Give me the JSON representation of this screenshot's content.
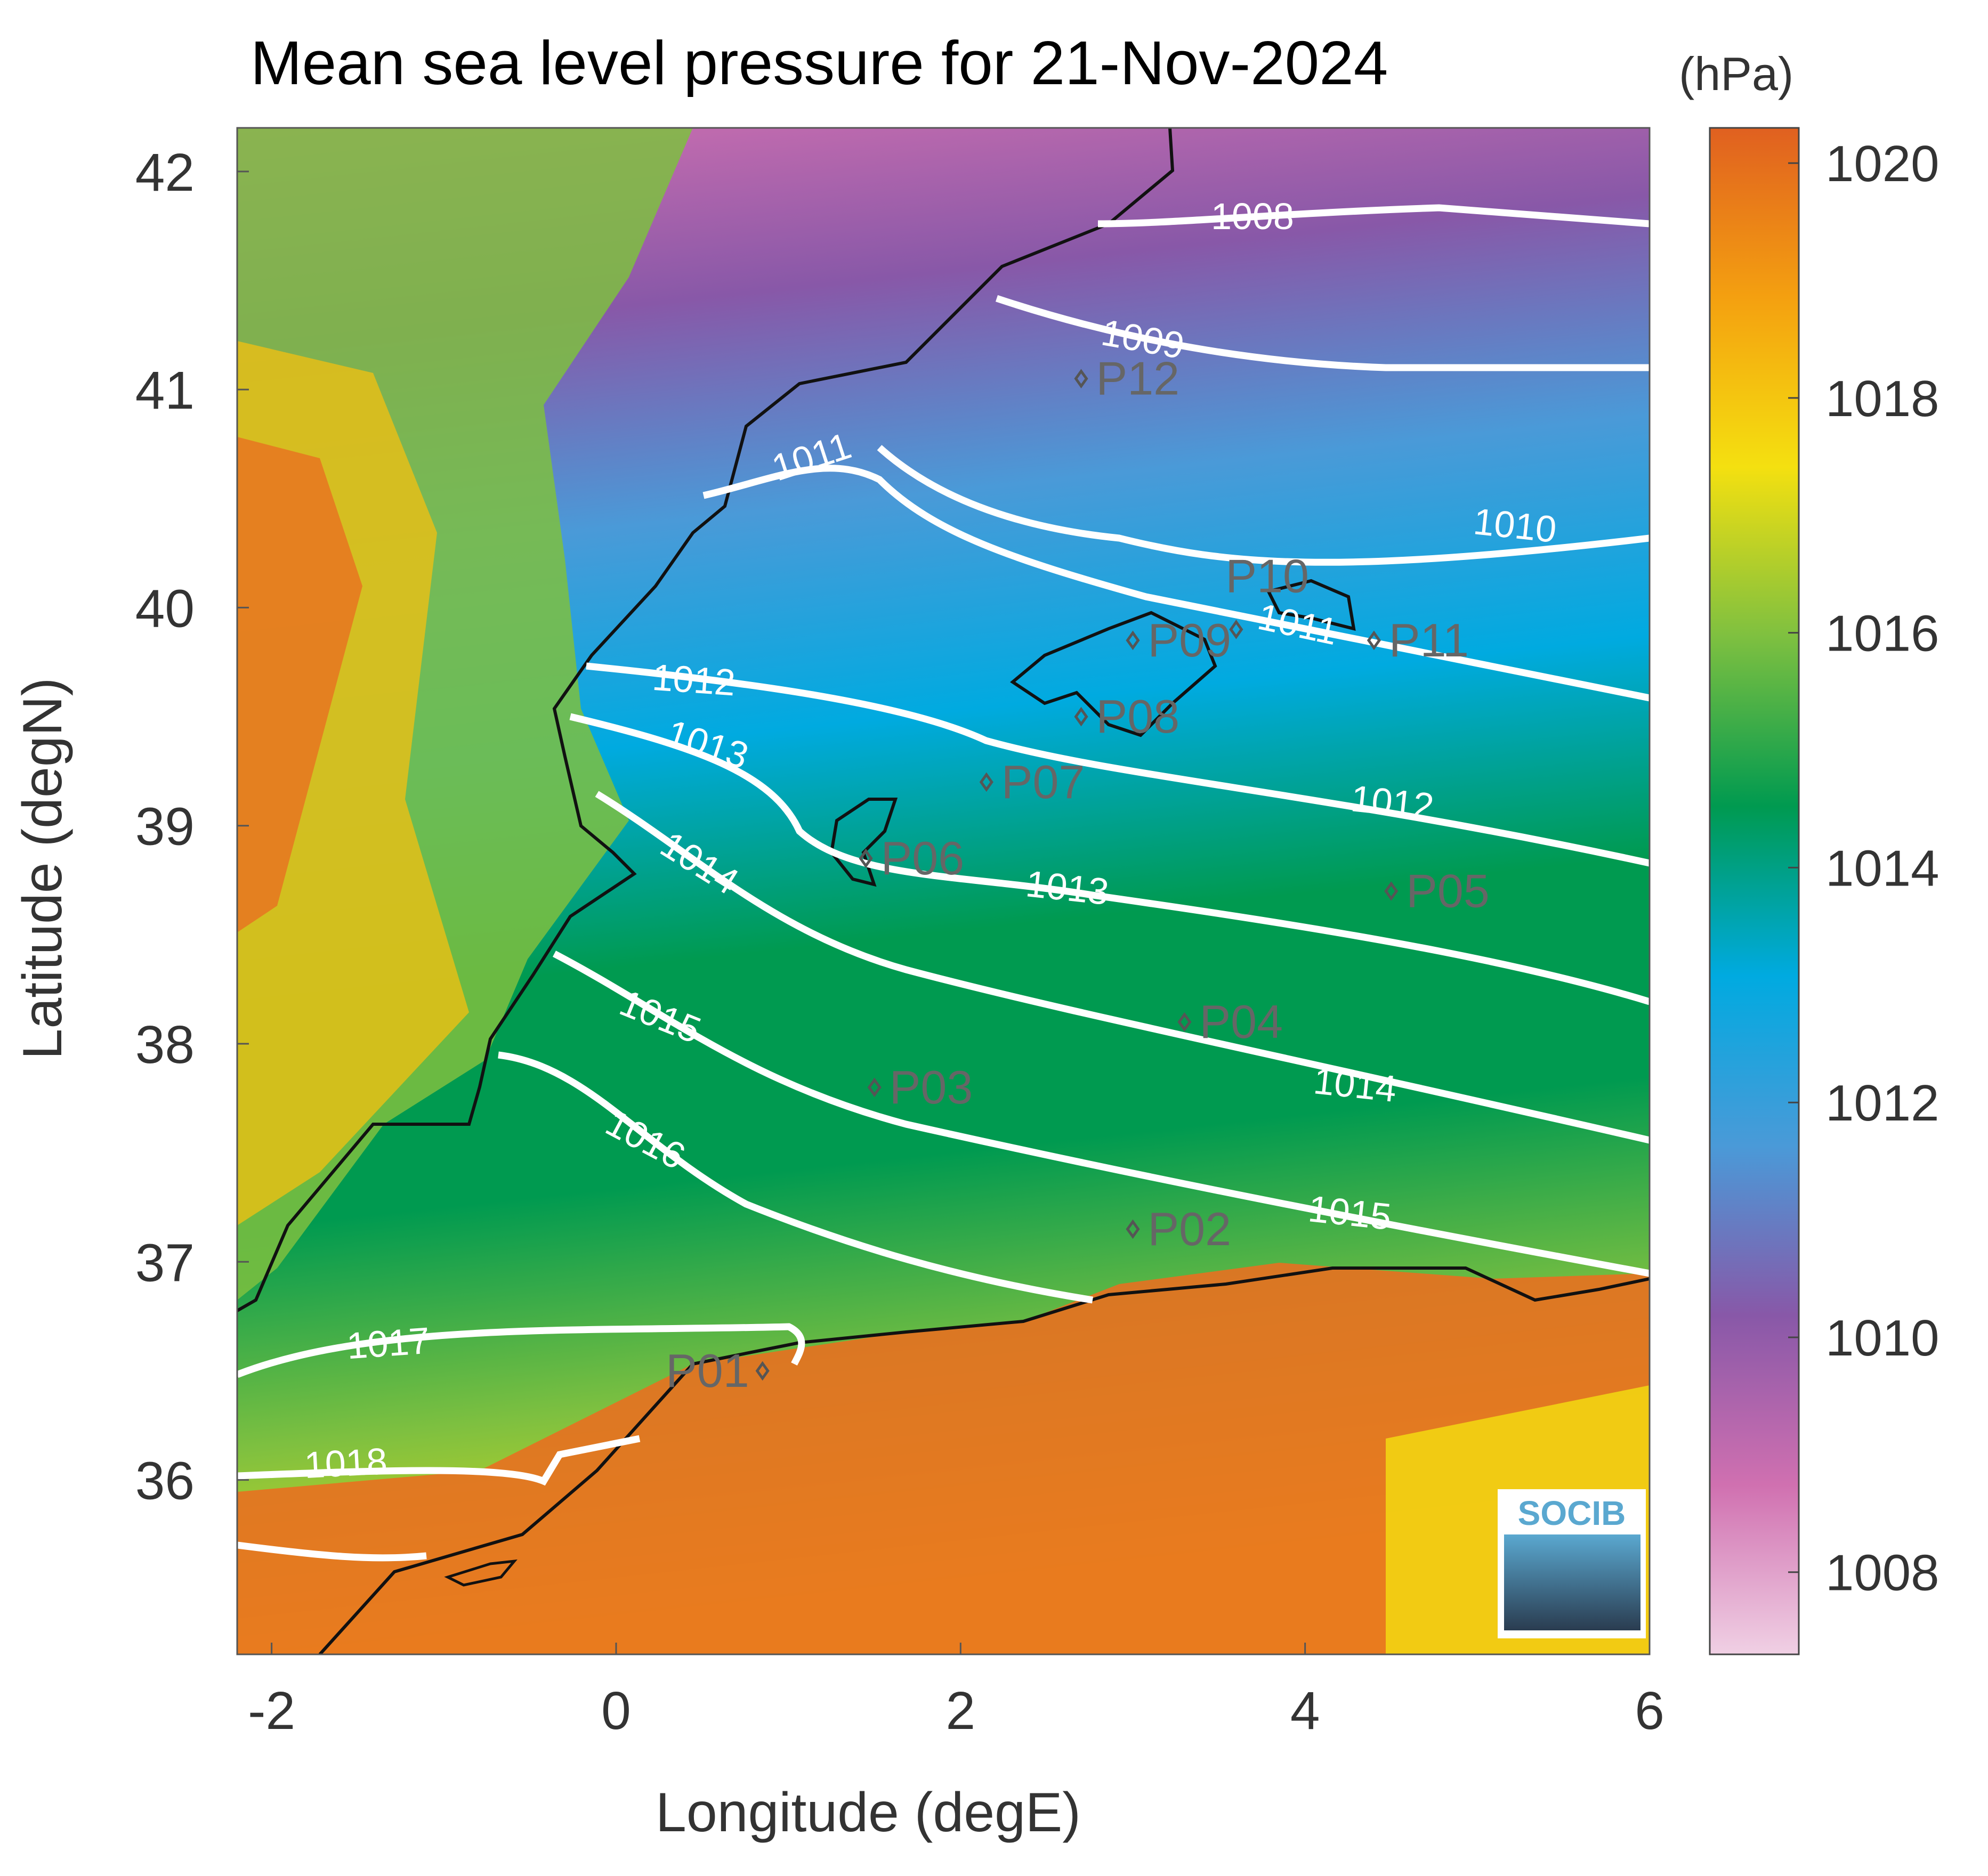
{
  "title": "Mean sea level pressure for 21-Nov-2024",
  "chart_data": {
    "type": "heatmap",
    "subtype": "contour map",
    "title": "Mean sea level pressure for 21-Nov-2024",
    "xlabel": "Longitude (degE)",
    "ylabel": "Latitude (degN)",
    "xlim": [
      -2.2,
      6.0
    ],
    "ylim": [
      35.2,
      42.2
    ],
    "xticks": [
      -2,
      0,
      2,
      4,
      6
    ],
    "xtick_labels": [
      "-2",
      "0",
      "2",
      "4",
      "6"
    ],
    "yticks": [
      36,
      37,
      38,
      39,
      40,
      41,
      42
    ],
    "ytick_labels": [
      "36",
      "37",
      "38",
      "39",
      "40",
      "41",
      "42"
    ],
    "colorbar": {
      "unit": "(hPa)",
      "range": [
        1007.3,
        1020.3
      ],
      "ticks": [
        1008,
        1010,
        1012,
        1014,
        1016,
        1018,
        1020
      ],
      "tick_labels": [
        "1008",
        "1010",
        "1012",
        "1014",
        "1016",
        "1018",
        "1020"
      ],
      "colors": [
        "#f0d0e4",
        "#d070b0",
        "#8858a8",
        "#4a9ad8",
        "#00aae0",
        "#009a50",
        "#7ec040",
        "#f4e010",
        "#f4a010",
        "#e06020"
      ]
    },
    "contour_color": "#ffffff",
    "contour_labels": [
      "1008",
      "1009",
      "1010",
      "1011",
      "1011",
      "1012",
      "1012",
      "1013",
      "1013",
      "1014",
      "1014",
      "1015",
      "1015",
      "1016",
      "1017",
      "1018"
    ],
    "stations": [
      {
        "name": "P01",
        "lon": 0.85,
        "lat": 36.5
      },
      {
        "name": "P02",
        "lon": 3.0,
        "lat": 37.15
      },
      {
        "name": "P03",
        "lon": 1.5,
        "lat": 37.8
      },
      {
        "name": "P04",
        "lon": 3.3,
        "lat": 38.1
      },
      {
        "name": "P05",
        "lon": 4.5,
        "lat": 38.7
      },
      {
        "name": "P06",
        "lon": 1.45,
        "lat": 38.85
      },
      {
        "name": "P07",
        "lon": 2.15,
        "lat": 39.2
      },
      {
        "name": "P08",
        "lon": 2.7,
        "lat": 39.5
      },
      {
        "name": "P09",
        "lon": 3.0,
        "lat": 39.85
      },
      {
        "name": "P10",
        "lon": 3.6,
        "lat": 39.9
      },
      {
        "name": "P11",
        "lon": 4.4,
        "lat": 39.85
      },
      {
        "name": "P12",
        "lon": 2.7,
        "lat": 41.05
      }
    ],
    "logo_text": "SOCIB",
    "logo_colors": [
      "#5aa8d0",
      "#2a3c50"
    ]
  }
}
